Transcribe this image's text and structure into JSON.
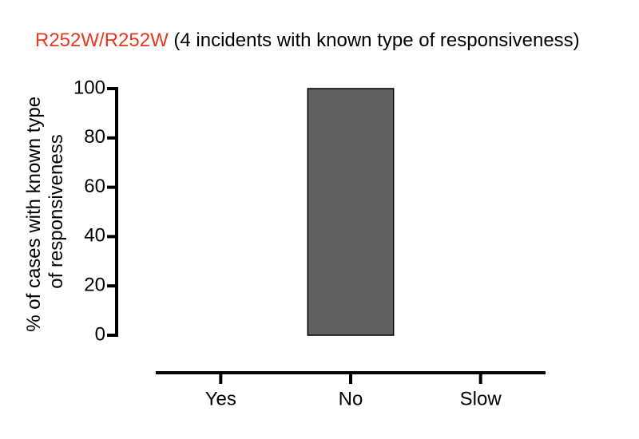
{
  "chart_data": {
    "type": "bar",
    "title": {
      "highlight": "R252W/R252W",
      "text": "(4 incidents with known type of responsiveness)",
      "highlight_color": "#e8391e"
    },
    "y_label": [
      "% of cases with  known type",
      "of responsiveness"
    ],
    "categories": [
      "Yes",
      "No",
      "Slow"
    ],
    "values": [
      0,
      100,
      0
    ],
    "color": "#606060",
    "ylim": [
      0,
      100
    ],
    "yticks": [
      0,
      20,
      40,
      60,
      80,
      100
    ],
    "grid": false
  }
}
